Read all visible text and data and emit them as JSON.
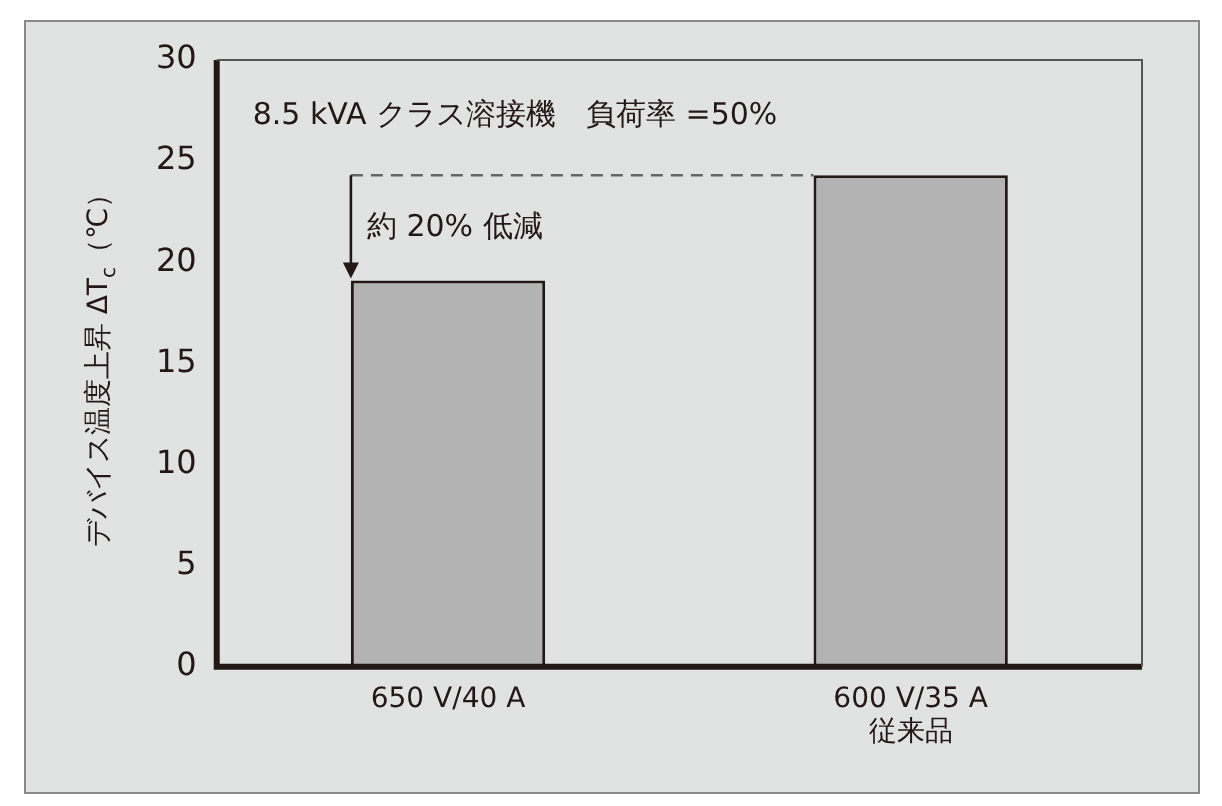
{
  "chart_data": {
    "type": "bar",
    "ylabel": "デバイス温度上昇 ΔT$_{c}$（℃）",
    "categories": [
      "650 V/40 A",
      "600 V/35 A\n従来品"
    ],
    "values": [
      19.1,
      24.3
    ],
    "color": "#b3b3b3",
    "ylim": [
      0,
      30
    ],
    "yticks": [
      0,
      5,
      10,
      15,
      20,
      25,
      30
    ],
    "grid": false,
    "legend": false,
    "ref_lines": [
      {
        "axis": "y",
        "value": 24.3,
        "line_style": "dashed",
        "color": "#666666",
        "label": "約 20% 低減"
      }
    ],
    "annotations": [
      "8.5 kVA クラス溶接機　負荷率 =50%"
    ]
  }
}
